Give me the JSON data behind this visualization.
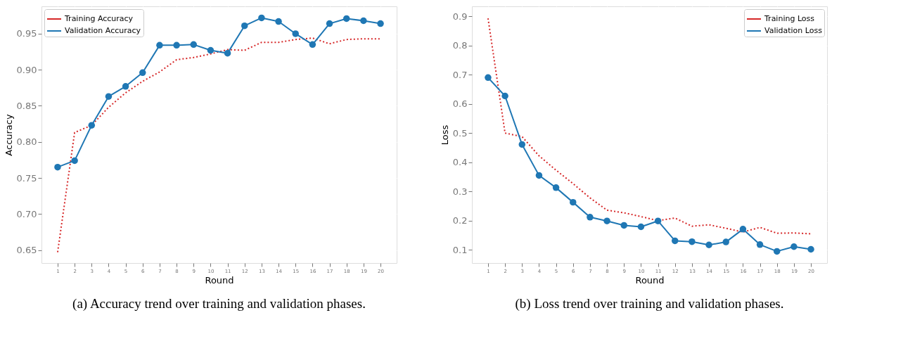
{
  "chart_data": [
    {
      "type": "line",
      "xlabel": "Round",
      "ylabel": "Accuracy",
      "annotations": [
        "(a) Accuracy trend over training and validation phases."
      ],
      "x": [
        1,
        2,
        3,
        4,
        5,
        6,
        7,
        8,
        9,
        10,
        11,
        12,
        13,
        14,
        15,
        16,
        17,
        18,
        19,
        20
      ],
      "series": [
        {
          "name": "Training Accuracy",
          "color": "#d62728",
          "line_style": "dotted",
          "marker": "none",
          "values": [
            0.647,
            0.813,
            0.823,
            0.848,
            0.868,
            0.884,
            0.897,
            0.914,
            0.917,
            0.922,
            0.928,
            0.927,
            0.938,
            0.938,
            0.942,
            0.944,
            0.936,
            0.942,
            0.943,
            0.943
          ]
        },
        {
          "name": "Validation Accuracy",
          "color": "#1f77b4",
          "line_style": "solid",
          "marker": "circle",
          "values": [
            0.765,
            0.774,
            0.823,
            0.863,
            0.877,
            0.896,
            0.934,
            0.934,
            0.935,
            0.927,
            0.923,
            0.961,
            0.972,
            0.967,
            0.95,
            0.935,
            0.964,
            0.971,
            0.968,
            0.964
          ]
        }
      ],
      "xlim": [
        0.05,
        20.95
      ],
      "xticks": [
        1,
        2,
        3,
        4,
        5,
        6,
        7,
        8,
        9,
        10,
        11,
        12,
        13,
        14,
        15,
        16,
        17,
        18,
        19,
        20
      ],
      "ylim": [
        0.632,
        0.988
      ],
      "yticks": [
        0.65,
        {
          "value": 0.7,
          "label": "0.70"
        },
        0.75,
        {
          "value": 0.8,
          "label": "0.80"
        },
        0.85,
        {
          "value": 0.9,
          "label": "0.90"
        },
        0.95
      ],
      "grid": true,
      "legend": "top left"
    },
    {
      "type": "line",
      "xlabel": "Round",
      "ylabel": "Loss",
      "annotations": [
        "(b) Loss trend over training and validation phases."
      ],
      "x": [
        1,
        2,
        3,
        4,
        5,
        6,
        7,
        8,
        9,
        10,
        11,
        12,
        13,
        14,
        15,
        16,
        17,
        18,
        19,
        20
      ],
      "series": [
        {
          "name": "Training Loss",
          "color": "#d62728",
          "line_style": "dotted",
          "marker": "none",
          "values": [
            0.893,
            0.5,
            0.488,
            0.422,
            0.373,
            0.327,
            0.278,
            0.236,
            0.227,
            0.214,
            0.2,
            0.209,
            0.181,
            0.186,
            0.174,
            0.161,
            0.177,
            0.157,
            0.158,
            0.155
          ]
        },
        {
          "name": "Validation Loss",
          "color": "#1f77b4",
          "line_style": "solid",
          "marker": "circle",
          "values": [
            0.69,
            0.627,
            0.461,
            0.355,
            0.313,
            0.263,
            0.212,
            0.199,
            0.184,
            0.179,
            0.199,
            0.131,
            0.128,
            0.117,
            0.127,
            0.171,
            0.118,
            0.095,
            0.111,
            0.102
          ]
        }
      ],
      "xlim": [
        0.05,
        20.95
      ],
      "xticks": [
        1,
        2,
        3,
        4,
        5,
        6,
        7,
        8,
        9,
        10,
        11,
        12,
        13,
        14,
        15,
        16,
        17,
        18,
        19,
        20
      ],
      "ylim": [
        0.055,
        0.934
      ],
      "yticks": [
        0.1,
        0.2,
        0.3,
        0.4,
        0.5,
        0.6,
        0.7,
        0.8,
        0.9
      ],
      "grid": true,
      "legend": "top right"
    }
  ]
}
